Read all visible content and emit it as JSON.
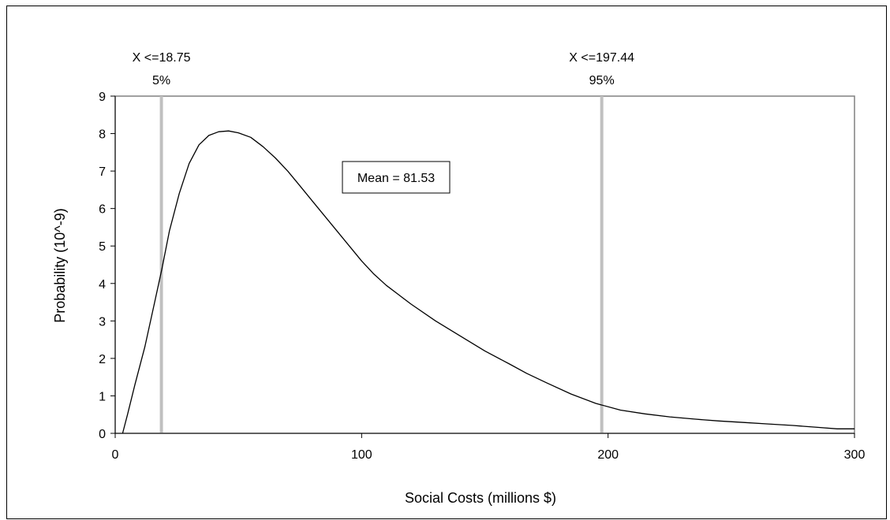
{
  "chart_data": {
    "type": "line",
    "title": "",
    "xlabel": "Social Costs (millions $)",
    "ylabel": "Probability (10^-9)",
    "xlim": [
      0,
      300
    ],
    "ylim": [
      0,
      9
    ],
    "x_ticks": [
      "0",
      "100",
      "200",
      "300"
    ],
    "y_ticks": [
      "0",
      "1",
      "2",
      "3",
      "4",
      "5",
      "6",
      "7",
      "8",
      "9"
    ],
    "grid": false,
    "legend": "none",
    "series": [
      {
        "x": [
          3,
          5,
          8,
          12,
          16,
          19,
          22,
          26,
          30,
          34,
          38,
          42,
          46,
          50,
          55,
          60,
          65,
          70,
          75,
          80,
          85,
          90,
          95,
          100,
          105,
          110,
          115,
          120,
          130,
          140,
          150,
          160,
          167,
          175,
          185,
          195,
          205,
          215,
          225,
          235,
          245,
          255,
          265,
          275,
          285,
          293,
          300
        ],
        "values": [
          0.0,
          0.5,
          1.3,
          2.3,
          3.5,
          4.4,
          5.4,
          6.4,
          7.2,
          7.7,
          7.95,
          8.05,
          8.07,
          8.02,
          7.9,
          7.65,
          7.35,
          7.0,
          6.6,
          6.2,
          5.8,
          5.4,
          5.0,
          4.6,
          4.25,
          3.95,
          3.7,
          3.45,
          3.0,
          2.6,
          2.2,
          1.85,
          1.6,
          1.35,
          1.05,
          0.8,
          0.62,
          0.52,
          0.44,
          0.38,
          0.33,
          0.29,
          0.25,
          0.21,
          0.16,
          0.12,
          0.12
        ]
      }
    ],
    "percentile_lines": [
      {
        "x": 18.75,
        "label": "X <=18.75",
        "percent": "5%"
      },
      {
        "x": 197.44,
        "label": "X <=197.44",
        "percent": "95%"
      }
    ],
    "percentile_line_color": "#c0c0c0",
    "mean_label": "Mean = 81.53"
  }
}
